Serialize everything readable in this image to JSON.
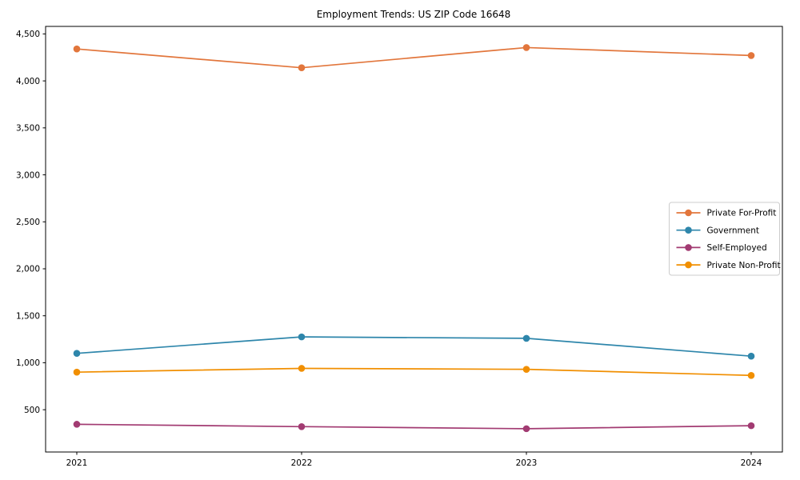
{
  "chart_data": {
    "type": "line",
    "title": "Employment Trends: US ZIP Code 16648",
    "xlabel": "",
    "ylabel": "",
    "categories": [
      "2021",
      "2022",
      "2023",
      "2024"
    ],
    "series": [
      {
        "name": "Private For-Profit",
        "color": "#E2763C",
        "values": [
          4340,
          4140,
          4355,
          4270
        ]
      },
      {
        "name": "Government",
        "color": "#2E86AB",
        "values": [
          1100,
          1275,
          1260,
          1070
        ]
      },
      {
        "name": "Self-Employed",
        "color": "#A23B72",
        "values": [
          345,
          320,
          298,
          330
        ]
      },
      {
        "name": "Private Non-Profit",
        "color": "#F18F01",
        "values": [
          900,
          940,
          930,
          865
        ]
      }
    ],
    "yticks": [
      500,
      1000,
      1500,
      2000,
      2500,
      3000,
      3500,
      4000,
      4500
    ],
    "ytick_labels": [
      "500",
      "1,000",
      "1,500",
      "2,000",
      "2,500",
      "3,000",
      "3,500",
      "4,000",
      "4,500"
    ],
    "ylim": [
      50,
      4580
    ],
    "grid": false,
    "legend_position": "center-right",
    "background_color": "#ffffff",
    "axis_color": "#000000",
    "legend_border_color": "#cccccc"
  }
}
